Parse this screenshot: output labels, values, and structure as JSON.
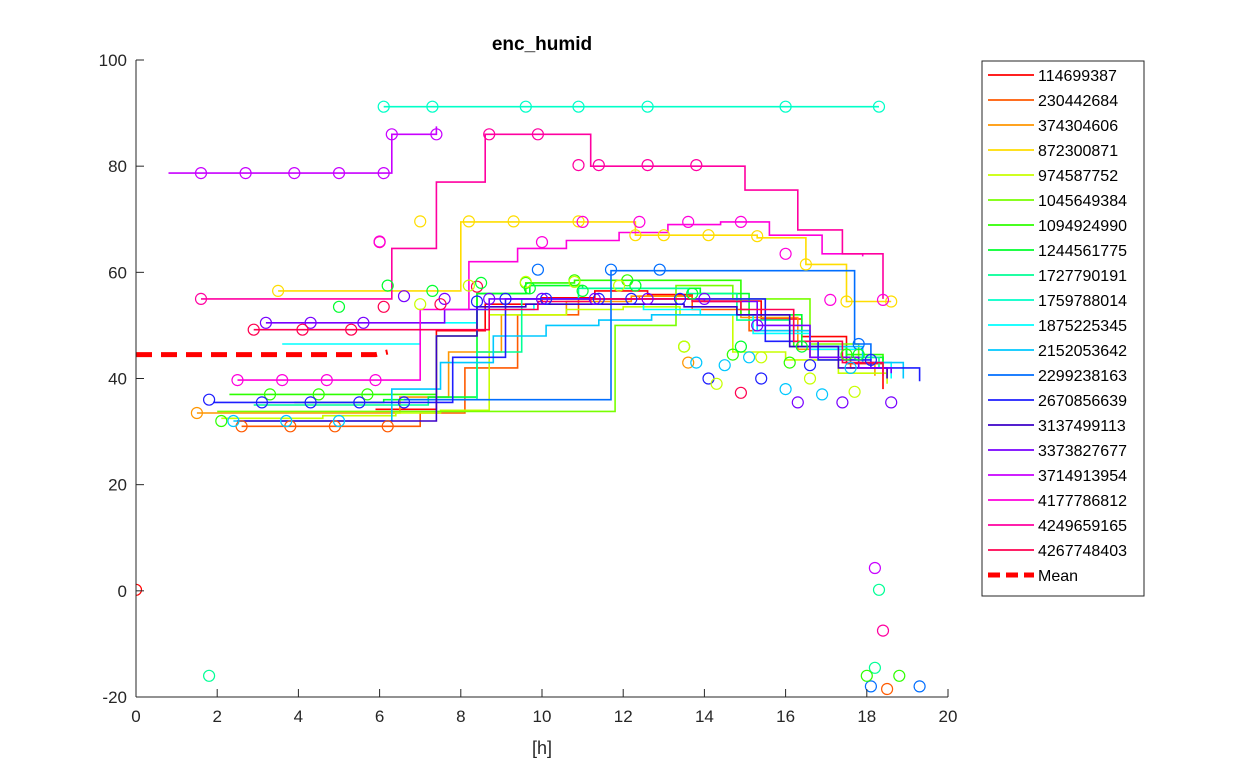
{
  "chart_data": {
    "type": "line",
    "title": "enc_humid",
    "xlabel": "[h]",
    "ylabel": "",
    "xlim": [
      0,
      20
    ],
    "ylim": [
      -20,
      100
    ],
    "xticks": [
      "0",
      "2",
      "4",
      "6",
      "8",
      "10",
      "12",
      "14",
      "16",
      "18",
      "20"
    ],
    "yticks": [
      "100",
      "80",
      "60",
      "40",
      "20",
      "0",
      "-20"
    ],
    "legend_position": "outside-right",
    "grid": false,
    "series": [
      {
        "name": "114699387",
        "color": "#ff0000",
        "x": [
          5.9,
          6.2,
          7.4,
          8.6,
          10.0,
          11.3,
          12.6,
          13.7,
          15.4,
          16.4,
          17.5,
          18.4
        ],
        "y": [
          34.2,
          34.2,
          49.0,
          54.0,
          55.2,
          56.5,
          55.8,
          54.6,
          51.2,
          47.9,
          42.8,
          38.0
        ]
      },
      {
        "name": "230442684",
        "color": "#ff5a00",
        "x": [
          2.6,
          3.8,
          4.9,
          5.0,
          6.2,
          7.0,
          8.1,
          9.4,
          10.9,
          12.4,
          13.7,
          15.1,
          16.6,
          17.6,
          18.5
        ],
        "y": [
          31.0,
          31.0,
          31.0,
          31.0,
          31.0,
          33.5,
          42.0,
          52.0,
          55.0,
          55.5,
          53.0,
          49.0,
          44.0,
          42.0,
          40.0
        ]
      },
      {
        "name": "374304606",
        "color": "#ff9600",
        "x": [
          1.5,
          2.5,
          4.0,
          5.5,
          6.5,
          7.7,
          9.0,
          10.6,
          12.2,
          13.6,
          14.9,
          16.3,
          17.8,
          18.2
        ],
        "y": [
          33.5,
          33.5,
          33.5,
          33.5,
          36.5,
          45.0,
          52.0,
          54.5,
          55.5,
          55.0,
          51.5,
          45.5,
          43.0,
          40.5
        ]
      },
      {
        "name": "872300871",
        "color": "#ffdd00",
        "x": [
          3.5,
          4.8,
          5.7,
          6.9,
          8.0,
          9.3,
          10.9,
          12.3,
          13.0,
          14.1,
          15.3,
          16.5,
          17.5,
          18.6
        ],
        "y": [
          56.5,
          56.5,
          56.5,
          56.5,
          69.5,
          69.5,
          69.5,
          67.0,
          67.0,
          67.0,
          66.5,
          61.5,
          54.5,
          54.5
        ]
      },
      {
        "name": "974587752",
        "color": "#c8ff00",
        "x": [
          2.1,
          3.4,
          4.6,
          6.4,
          7.5,
          8.7,
          10.6,
          12.0,
          13.4,
          14.7,
          16.0,
          17.3,
          18.5
        ],
        "y": [
          32.5,
          32.5,
          33.0,
          33.5,
          34.0,
          52.0,
          53.0,
          53.5,
          52.0,
          45.0,
          43.5,
          41.0,
          39.0
        ]
      },
      {
        "name": "1045649384",
        "color": "#78ff00",
        "x": [
          2.0,
          3.0,
          4.4,
          5.8,
          7.3,
          9.7,
          10.8,
          11.8,
          13.3,
          14.7,
          16.6,
          17.8,
          18.4
        ],
        "y": [
          33.8,
          33.8,
          33.8,
          33.8,
          33.8,
          33.8,
          33.8,
          50.0,
          57.5,
          55.0,
          46.5,
          44.0,
          42.0
        ]
      },
      {
        "name": "1094924990",
        "color": "#2eff00",
        "x": [
          2.3,
          3.6,
          4.9,
          6.2,
          7.4,
          8.4,
          9.6,
          10.8,
          12.1,
          13.5,
          14.9,
          16.2,
          17.5,
          18.4
        ],
        "y": [
          37.0,
          37.0,
          37.0,
          37.0,
          48.0,
          56.0,
          58.0,
          58.5,
          58.5,
          58.5,
          52.0,
          46.0,
          44.5,
          43.5
        ]
      },
      {
        "name": "1244561775",
        "color": "#00ff2e",
        "x": [
          3.9,
          5.1,
          6.1,
          7.2,
          8.4,
          9.7,
          11.0,
          12.5,
          13.9,
          15.1,
          16.4,
          17.5,
          18.4
        ],
        "y": [
          35.5,
          35.5,
          36.0,
          36.5,
          56.0,
          57.5,
          57.0,
          57.0,
          56.0,
          52.0,
          46.0,
          44.0,
          42.0
        ]
      },
      {
        "name": "1727790191",
        "color": "#00ff96",
        "x": [
          2.9,
          4.0,
          5.3,
          6.4,
          7.2,
          8.4,
          9.5,
          10.9,
          12.2,
          13.6,
          14.8,
          16.1,
          17.3,
          18.3
        ],
        "y": [
          35.0,
          35.0,
          35.0,
          35.0,
          36.0,
          45.0,
          55.0,
          57.0,
          57.0,
          56.0,
          51.0,
          46.0,
          44.0,
          42.0
        ]
      },
      {
        "name": "1759788014",
        "color": "#00ffc8",
        "x": [
          6.1,
          7.3,
          9.6,
          10.9,
          12.6,
          16.0,
          17.1,
          18.3
        ],
        "y": [
          91.2,
          91.2,
          91.2,
          91.2,
          91.2,
          91.2,
          91.2,
          91.2
        ]
      },
      {
        "name": "1875225345",
        "color": "#00ffff",
        "x": [
          3.6,
          4.8,
          6.1,
          7.0,
          8.4,
          9.8,
          11.1,
          12.5,
          13.9,
          15.2,
          16.6,
          17.9,
          18.6
        ],
        "y": [
          46.5,
          46.5,
          46.5,
          50.5,
          53.0,
          54.0,
          54.0,
          53.0,
          52.0,
          48.5,
          45.5,
          43.0,
          40.0
        ]
      },
      {
        "name": "2152053642",
        "color": "#00c8ff",
        "x": [
          2.4,
          3.7,
          5.0,
          6.3,
          7.5,
          8.8,
          10.1,
          11.4,
          12.7,
          14.0,
          15.3,
          16.6,
          17.9,
          18.9
        ],
        "y": [
          32.0,
          32.0,
          32.0,
          38.0,
          43.0,
          48.0,
          50.0,
          51.0,
          52.0,
          52.0,
          49.0,
          46.0,
          43.0,
          40.0
        ]
      },
      {
        "name": "2299238163",
        "color": "#006eff",
        "x": [
          6.6,
          7.8,
          8.8,
          9.9,
          11.7,
          12.9,
          15.4,
          17.7,
          18.1
        ],
        "y": [
          36.0,
          36.0,
          36.0,
          36.0,
          60.3,
          60.3,
          60.3,
          46.5,
          43.5
        ]
      },
      {
        "name": "2670856639",
        "color": "#1e1eff",
        "x": [
          1.9,
          3.1,
          4.3,
          5.6,
          6.6,
          7.8,
          9.1,
          10.0,
          11.4,
          12.8,
          14.1,
          15.5,
          16.8,
          18.1,
          19.3
        ],
        "y": [
          35.5,
          35.5,
          35.5,
          35.5,
          35.5,
          44.0,
          55.0,
          55.0,
          55.0,
          55.0,
          55.0,
          47.0,
          43.5,
          42.0,
          39.5
        ]
      },
      {
        "name": "3137499113",
        "color": "#3c00c8",
        "x": [
          2.5,
          3.8,
          5.0,
          6.1,
          7.4,
          8.4,
          9.6,
          10.9,
          12.2,
          13.5,
          14.8,
          16.1,
          17.3,
          18.5
        ],
        "y": [
          32.0,
          32.0,
          32.0,
          32.0,
          48.0,
          53.5,
          54.0,
          54.0,
          54.0,
          53.5,
          52.0,
          46.0,
          42.0,
          40.0
        ]
      },
      {
        "name": "3373827677",
        "color": "#7800ff",
        "x": [
          3.2,
          4.3,
          5.6,
          6.6,
          7.6,
          8.7,
          10.0,
          11.3,
          12.6,
          14.0,
          15.3,
          16.6,
          17.8,
          18.6
        ],
        "y": [
          50.5,
          50.5,
          50.5,
          50.5,
          53.0,
          55.0,
          55.0,
          55.0,
          55.0,
          54.5,
          50.0,
          44.0,
          42.0,
          41.0
        ]
      },
      {
        "name": "3714913954",
        "color": "#c800ff",
        "x": [
          0.8,
          2.6,
          3.8,
          5.0,
          6.1,
          6.3,
          7.4
        ],
        "y": [
          78.7,
          78.7,
          78.7,
          78.7,
          78.7,
          86.0,
          87.5
        ]
      },
      {
        "name": "4177786812",
        "color": "#ff00dc",
        "x": [
          2.5,
          3.6,
          4.7,
          5.9,
          7.0,
          8.2,
          9.4,
          10.6,
          11.9,
          13.1,
          14.4,
          15.6,
          16.9,
          17.9
        ],
        "y": [
          39.7,
          39.7,
          39.7,
          39.7,
          53.0,
          62.0,
          64.5,
          66.0,
          67.5,
          69.0,
          69.5,
          67.0,
          63.5,
          63.0
        ]
      },
      {
        "name": "4249659165",
        "color": "#ff00a0",
        "x": [
          1.6,
          2.7,
          4.0,
          5.2,
          6.3,
          7.4,
          8.6,
          9.9,
          11.2,
          12.5,
          13.8,
          15.0,
          16.3,
          17.4,
          18.4
        ],
        "y": [
          55.0,
          55.0,
          55.0,
          55.0,
          64.5,
          77.0,
          86.0,
          86.0,
          80.0,
          80.0,
          80.0,
          75.5,
          68.0,
          63.5,
          55.0
        ]
      },
      {
        "name": "4267748403",
        "color": "#ff0050",
        "x": [
          2.9,
          4.1,
          5.3,
          6.3,
          7.5,
          8.7,
          9.9,
          11.2,
          12.5,
          13.7,
          14.9,
          16.2,
          17.4,
          18.4
        ],
        "y": [
          49.2,
          49.2,
          49.2,
          49.2,
          49.2,
          53.0,
          54.5,
          55.0,
          55.0,
          54.5,
          53.0,
          47.0,
          43.0,
          40.5
        ]
      },
      {
        "name": "Mean",
        "color": "#ff0000",
        "dashed": true,
        "x": [
          0,
          1,
          2,
          3,
          4,
          5,
          5.9,
          6.2
        ],
        "y": [
          44.5,
          44.5,
          44.5,
          44.5,
          44.5,
          44.5,
          44.5,
          45.0
        ]
      }
    ],
    "markers": [
      {
        "color": "#ff0000",
        "x": [
          0.0
        ],
        "y": [
          0.2
        ]
      },
      {
        "color": "#ff9600",
        "x": [
          1.5,
          13.6
        ],
        "y": [
          33.5,
          43.0
        ]
      },
      {
        "color": "#ff5a00",
        "x": [
          2.6,
          3.8,
          4.9,
          6.2,
          18.5
        ],
        "y": [
          31.0,
          31.0,
          31.0,
          31.0,
          -18.5
        ]
      },
      {
        "color": "#00ff96",
        "x": [
          1.8,
          18.2,
          18.3
        ],
        "y": [
          -16.0,
          -14.5,
          0.2
        ]
      },
      {
        "color": "#c800ff",
        "x": [
          1.6,
          2.7,
          3.9,
          5.0,
          6.1,
          6.3,
          7.4,
          18.2
        ],
        "y": [
          78.7,
          78.7,
          78.7,
          78.7,
          78.7,
          86.0,
          86.0,
          4.3
        ]
      },
      {
        "color": "#00ffc8",
        "x": [
          6.1,
          7.3,
          9.6,
          10.9,
          12.6,
          16.0,
          18.3
        ],
        "y": [
          91.2,
          91.2,
          91.2,
          91.2,
          91.2,
          91.2,
          91.2
        ]
      },
      {
        "color": "#ff00a0",
        "x": [
          1.6,
          6.0,
          8.7,
          9.9,
          10.9,
          11.4,
          12.6,
          13.8,
          18.4
        ],
        "y": [
          55.0,
          65.7,
          86.0,
          86.0,
          80.2,
          80.2,
          80.2,
          80.2,
          -7.5
        ]
      },
      {
        "color": "#ffdd00",
        "x": [
          3.5,
          7.0,
          8.2,
          9.3,
          10.9,
          12.3,
          13.0,
          14.1,
          15.3,
          16.5,
          17.5,
          18.6
        ],
        "y": [
          56.5,
          69.6,
          69.6,
          69.6,
          69.6,
          67.0,
          67.0,
          67.0,
          66.8,
          61.5,
          54.5,
          54.5
        ]
      },
      {
        "color": "#006eff",
        "x": [
          9.9,
          11.7,
          12.9,
          17.8,
          18.1,
          19.3
        ],
        "y": [
          60.5,
          60.5,
          60.5,
          46.5,
          -18.0,
          -18.0
        ]
      },
      {
        "color": "#2eff00",
        "x": [
          2.1,
          3.3,
          4.5,
          5.7,
          9.6,
          10.8,
          12.1,
          13.5,
          14.7,
          16.1,
          17.5,
          18.0,
          18.8
        ],
        "y": [
          32.0,
          37.0,
          37.0,
          37.0,
          58.0,
          58.5,
          58.5,
          46.0,
          44.5,
          43.0,
          44.5,
          -16.0,
          -16.0
        ]
      },
      {
        "color": "#00c8ff",
        "x": [
          2.4,
          3.7,
          5.0,
          13.8,
          14.5,
          15.1,
          16.0,
          16.9,
          17.6
        ],
        "y": [
          32.0,
          32.0,
          32.0,
          43.0,
          42.5,
          44.0,
          38.0,
          37.0,
          42.0
        ]
      },
      {
        "color": "#1e1eff",
        "x": [
          1.8,
          3.1,
          4.3,
          5.5,
          6.6,
          8.4,
          9.1,
          10.1,
          11.4,
          12.2,
          13.4,
          14.1,
          15.4,
          16.6,
          18.1
        ],
        "y": [
          36.0,
          35.5,
          35.5,
          35.5,
          35.5,
          54.5,
          55.0,
          55.0,
          55.0,
          55.0,
          55.0,
          40.0,
          40.0,
          42.5,
          43.5
        ]
      },
      {
        "color": "#7800ff",
        "x": [
          3.2,
          4.3,
          5.6,
          6.6,
          7.6,
          8.7,
          10.0,
          11.3,
          12.6,
          14.0,
          15.3,
          16.3,
          17.4,
          18.6
        ],
        "y": [
          50.5,
          50.5,
          50.5,
          55.5,
          55.0,
          55.0,
          55.0,
          55.0,
          55.0,
          55.0,
          50.0,
          35.5,
          35.5,
          35.5
        ]
      },
      {
        "color": "#ff00dc",
        "x": [
          2.5,
          3.6,
          4.7,
          5.9,
          6.0,
          10.0,
          11.0,
          12.4,
          13.6,
          14.9,
          16.0,
          17.1,
          18.4
        ],
        "y": [
          39.7,
          39.7,
          39.7,
          39.7,
          65.8,
          65.7,
          69.5,
          69.5,
          69.5,
          69.5,
          63.5,
          54.8,
          54.8
        ]
      },
      {
        "color": "#ff0050",
        "x": [
          2.9,
          4.1,
          5.3,
          6.1,
          7.5,
          8.4,
          14.9
        ],
        "y": [
          49.2,
          49.2,
          49.2,
          53.5,
          54.0,
          57.3,
          37.3
        ]
      },
      {
        "color": "#c8ff00",
        "x": [
          7.0,
          8.2,
          9.6,
          10.8,
          11.9,
          13.5,
          14.3,
          15.4,
          16.6,
          17.7
        ],
        "y": [
          54.0,
          57.5,
          58.2,
          58.2,
          57.5,
          46.0,
          39.0,
          44.0,
          40.0,
          37.5
        ]
      },
      {
        "color": "#00ff2e",
        "x": [
          5.0,
          6.2,
          7.3,
          8.5,
          9.7,
          11.0,
          12.3,
          13.7,
          14.9,
          16.4,
          17.8
        ],
        "y": [
          53.5,
          57.5,
          56.5,
          58.0,
          57.0,
          56.5,
          57.5,
          56.0,
          46.0,
          46.0,
          44.5
        ]
      }
    ]
  }
}
